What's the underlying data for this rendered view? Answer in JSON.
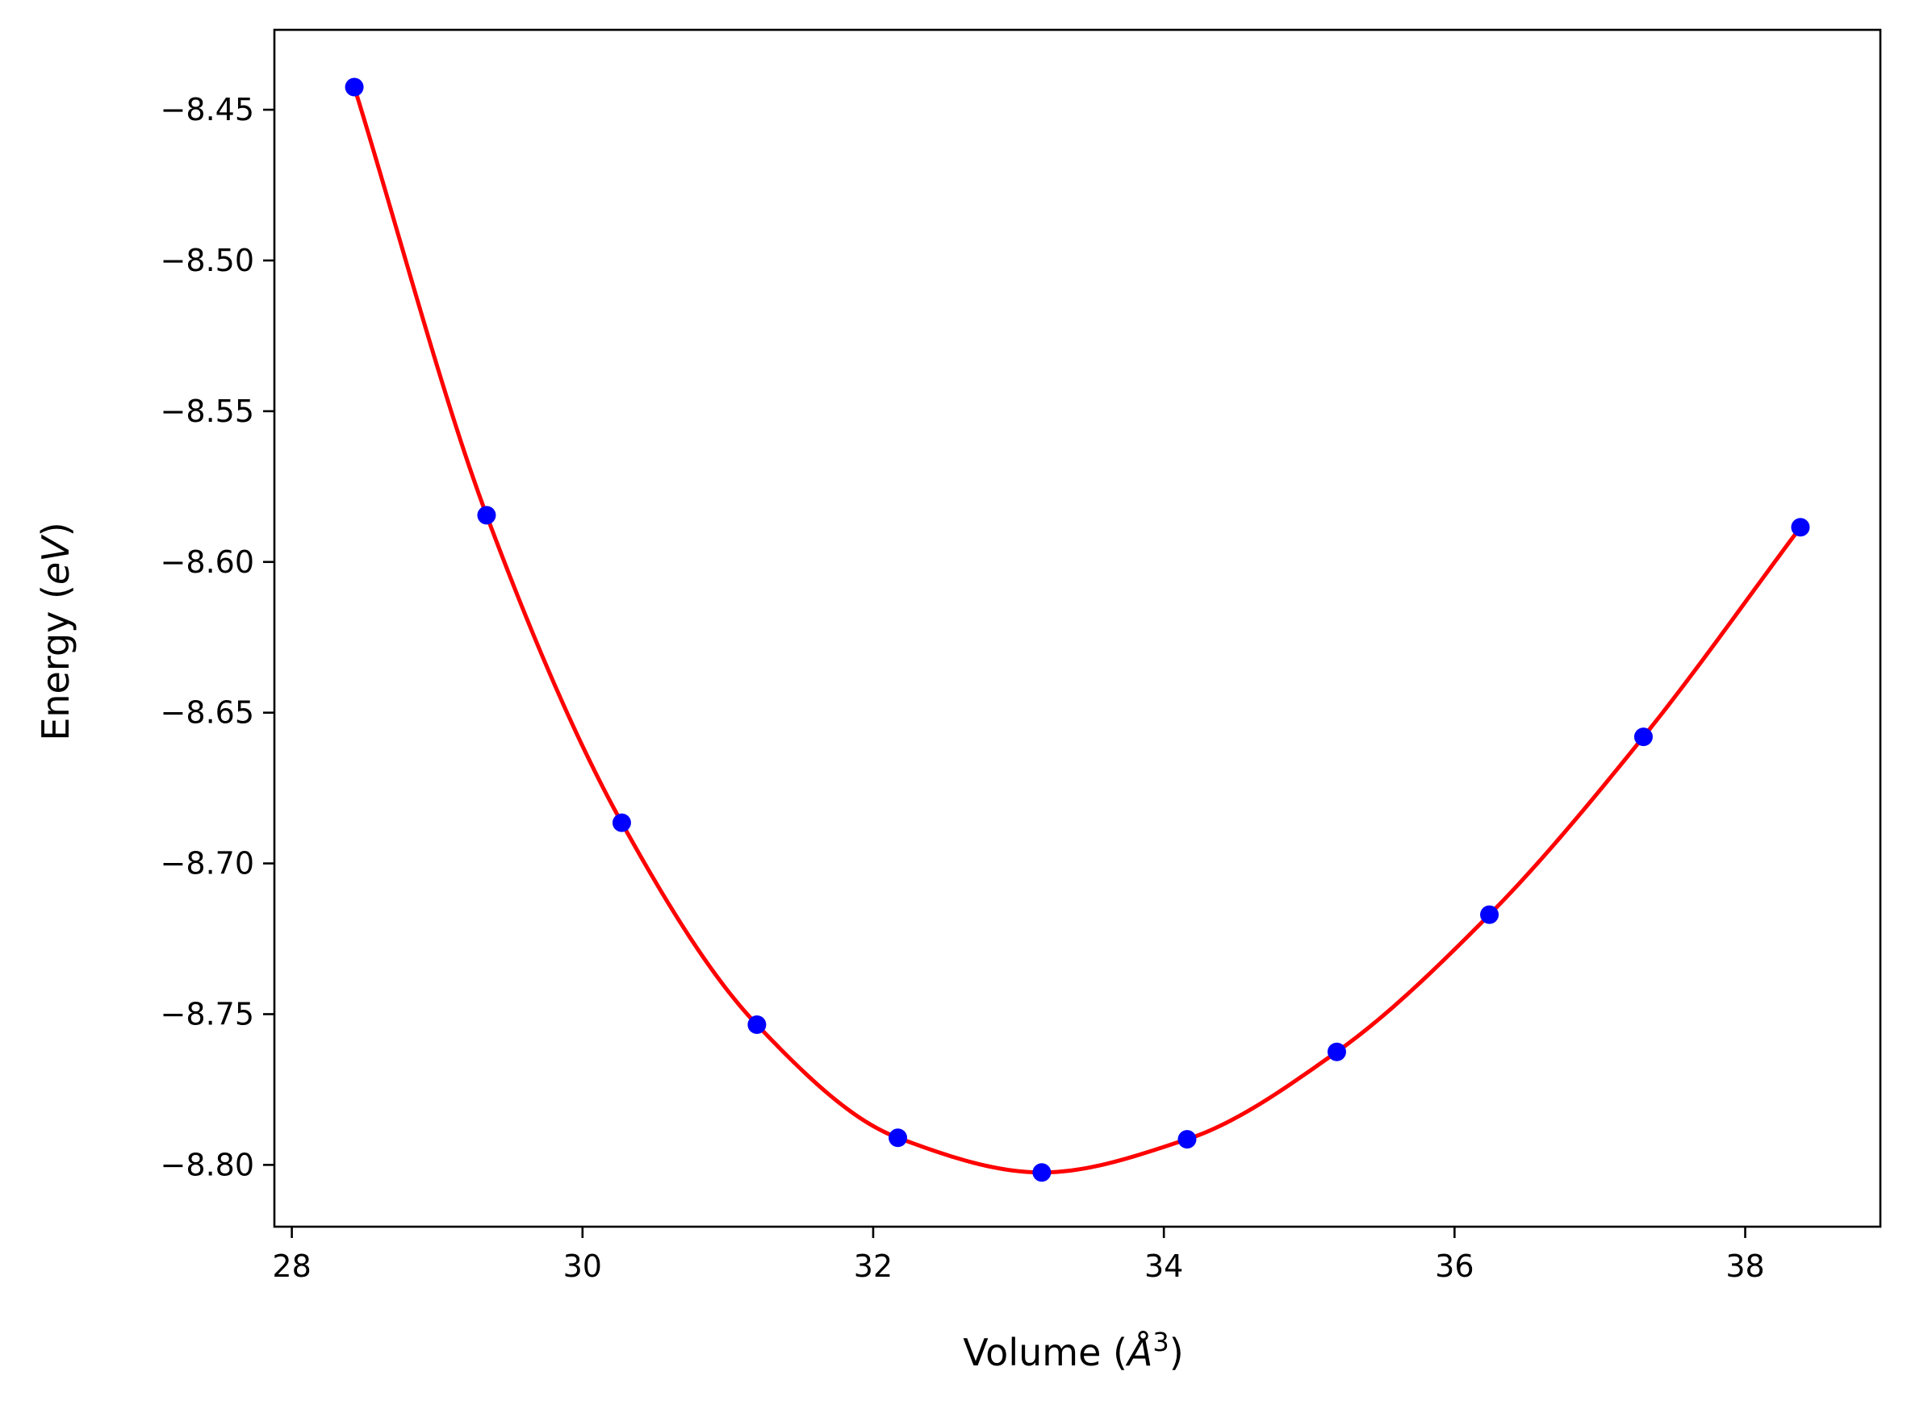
{
  "chart_data": {
    "type": "line",
    "title": "",
    "xlabel": "Volume (Å³)",
    "ylabel": "Energy (eV)",
    "xlabel_parts": {
      "prefix": "Volume (",
      "symbol": "Å",
      "exponent": "3",
      "suffix": ")"
    },
    "ylabel_parts": {
      "prefix": "Energy (",
      "italic": "eV",
      "suffix": ")"
    },
    "xlim": [
      27.88,
      38.93
    ],
    "ylim": [
      -8.8205,
      -8.4235
    ],
    "xticks": [
      28,
      30,
      32,
      34,
      36,
      38
    ],
    "yticks": [
      -8.45,
      -8.5,
      -8.55,
      -8.6,
      -8.65,
      -8.7,
      -8.75,
      -8.8
    ],
    "xtick_labels": [
      "28",
      "30",
      "32",
      "34",
      "36",
      "38"
    ],
    "ytick_labels": [
      "−8.45",
      "−8.50",
      "−8.55",
      "−8.60",
      "−8.65",
      "−8.70",
      "−8.75",
      "−8.80"
    ],
    "grid": false,
    "series": [
      {
        "kind": "scatter",
        "color": "#0000ff",
        "x": [
          28.43,
          29.34,
          30.27,
          31.2,
          32.17,
          33.16,
          34.16,
          35.19,
          36.24,
          37.3,
          38.38
        ],
        "y": [
          -8.4425,
          -8.5845,
          -8.6865,
          -8.7535,
          -8.791,
          -8.8025,
          -8.7915,
          -8.7625,
          -8.717,
          -8.658,
          -8.5885
        ]
      },
      {
        "kind": "line",
        "color": "#ff0000",
        "x": [
          28.43,
          29.34,
          30.27,
          31.2,
          32.17,
          33.16,
          34.16,
          35.19,
          36.24,
          37.3,
          38.38
        ],
        "y": [
          -8.4425,
          -8.5845,
          -8.6865,
          -8.7535,
          -8.791,
          -8.8025,
          -8.7915,
          -8.7625,
          -8.717,
          -8.658,
          -8.5885
        ]
      }
    ]
  }
}
